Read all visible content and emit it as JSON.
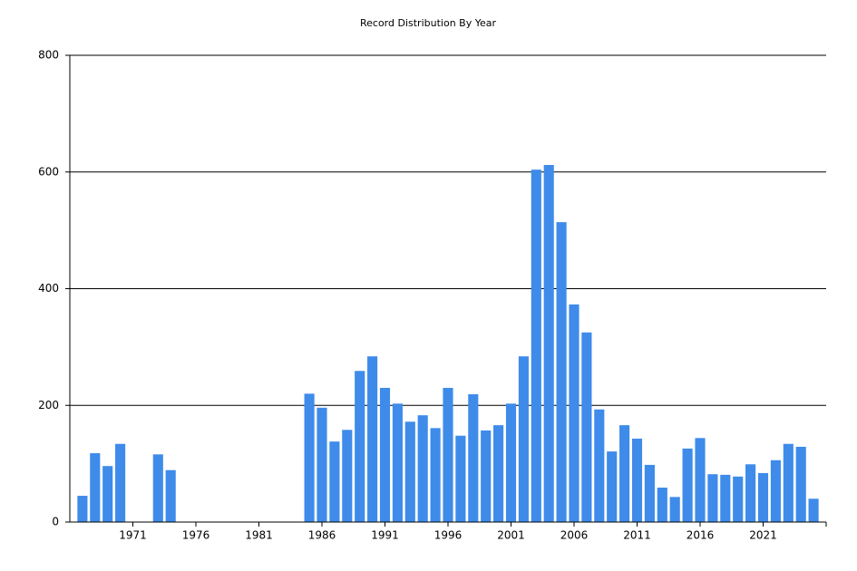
{
  "chart_data": {
    "type": "bar",
    "title": "Record Distribution By Year",
    "x": [
      1967,
      1968,
      1969,
      1970,
      1973,
      1974,
      1985,
      1986,
      1987,
      1988,
      1989,
      1990,
      1991,
      1992,
      1993,
      1994,
      1995,
      1996,
      1997,
      1998,
      1999,
      2000,
      2001,
      2002,
      2003,
      2004,
      2005,
      2006,
      2007,
      2008,
      2009,
      2010,
      2011,
      2012,
      2013,
      2014,
      2015,
      2016,
      2017,
      2018,
      2019,
      2020,
      2021,
      2022,
      2023,
      2024,
      2025
    ],
    "values": [
      45,
      118,
      96,
      134,
      116,
      89,
      220,
      196,
      138,
      158,
      259,
      284,
      230,
      203,
      172,
      183,
      161,
      230,
      148,
      219,
      157,
      166,
      203,
      284,
      604,
      612,
      514,
      373,
      325,
      193,
      121,
      166,
      143,
      98,
      59,
      43,
      126,
      144,
      82,
      81,
      78,
      99,
      84,
      106,
      134,
      129,
      40
    ],
    "color": "#3e8bea",
    "xlim": [
      1966,
      2026
    ],
    "xticks": [
      1971,
      1976,
      1981,
      1986,
      1991,
      1996,
      2001,
      2006,
      2011,
      2016,
      2021
    ],
    "ylim": [
      0,
      800
    ],
    "yticks": [
      0,
      200,
      400,
      600,
      800
    ],
    "grid": true
  }
}
